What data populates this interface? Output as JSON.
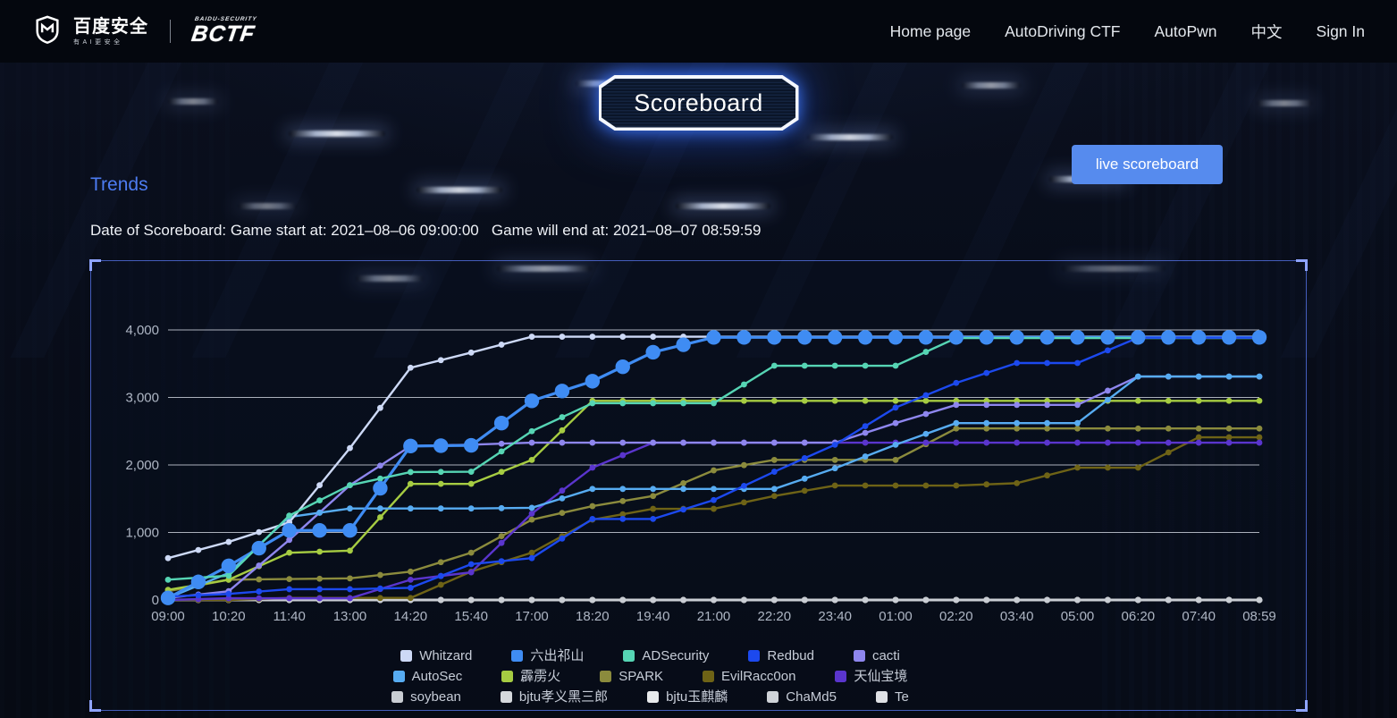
{
  "navbar": {
    "brand": {
      "name_cn": "百度安全",
      "slogan": "有AI更安全",
      "bctf_small": "BAIDU-SECURITY",
      "bctf": "BCTF"
    },
    "items": [
      {
        "label": "Home page"
      },
      {
        "label": "AutoDriving CTF"
      },
      {
        "label": "AutoPwn"
      },
      {
        "label": "中文"
      },
      {
        "label": "Sign In"
      }
    ]
  },
  "page": {
    "title": "Scoreboard",
    "live_button": "live scoreboard",
    "section_title": "Trends",
    "date_line": "Date of Scoreboard: Game start at: 2021–08–06 09:00:00   Game will end at: 2021–08–07 08:59:59"
  },
  "colors": {
    "accent_blue": "#4d7cf2",
    "button_blue": "#568bee",
    "panel_border": "#5470e2",
    "grid_line": "#d4d9e3",
    "tick_text": "#aeb6c4"
  },
  "chart_data": {
    "type": "line",
    "title": "Trends",
    "xlabel": "",
    "ylabel": "",
    "ylim": [
      0,
      4000
    ],
    "grid": true,
    "legend_position": "bottom",
    "x_ticks": [
      "09:00",
      "10:20",
      "11:40",
      "13:00",
      "14:20",
      "15:40",
      "17:00",
      "18:20",
      "19:40",
      "21:00",
      "22:20",
      "23:40",
      "01:00",
      "02:20",
      "03:40",
      "05:00",
      "06:20",
      "07:40",
      "08:59"
    ],
    "y_ticks": [
      {
        "value": 0,
        "label": "0"
      },
      {
        "value": 1000,
        "label": "1,000"
      },
      {
        "value": 2000,
        "label": "2,000"
      },
      {
        "value": 3000,
        "label": "3,000"
      },
      {
        "value": 4000,
        "label": "4,000"
      }
    ],
    "series": [
      {
        "name": "Whitzard",
        "color": "#cdd9f6",
        "big_markers": false,
        "values": [
          620,
          860,
          1150,
          2250,
          3440,
          3665,
          3900,
          3900,
          3900,
          3900,
          3900,
          3900,
          3900,
          3900,
          3900,
          3900,
          3900,
          3900,
          3900
        ]
      },
      {
        "name": "六出祁山",
        "color": "#3f8cf3",
        "big_markers": true,
        "values": [
          30,
          505,
          1030,
          1030,
          2280,
          2290,
          2950,
          3240,
          3670,
          3890,
          3890,
          3890,
          3890,
          3890,
          3890,
          3890,
          3890,
          3890,
          3890
        ]
      },
      {
        "name": "ADSecurity",
        "color": "#56d5b4",
        "big_markers": false,
        "values": [
          300,
          360,
          1250,
          1700,
          1895,
          1900,
          2500,
          2915,
          2915,
          2915,
          3470,
          3470,
          3470,
          3880,
          3880,
          3880,
          3880,
          3880,
          3880
        ]
      },
      {
        "name": "Redbud",
        "color": "#1c49ee",
        "big_markers": false,
        "values": [
          50,
          90,
          160,
          160,
          180,
          530,
          620,
          1200,
          1200,
          1480,
          1900,
          2300,
          2850,
          3215,
          3510,
          3510,
          3885,
          3885,
          3885
        ]
      },
      {
        "name": "cacti",
        "color": "#8e86ee",
        "big_markers": false,
        "values": [
          30,
          130,
          890,
          1700,
          2280,
          2300,
          2330,
          2330,
          2330,
          2330,
          2330,
          2330,
          2620,
          2890,
          2890,
          2890,
          3310,
          3310,
          3310
        ]
      },
      {
        "name": "AutoSec",
        "color": "#57acf2",
        "big_markers": false,
        "values": [
          30,
          400,
          1230,
          1355,
          1355,
          1355,
          1365,
          1645,
          1645,
          1645,
          1645,
          1950,
          2300,
          2620,
          2620,
          2620,
          3310,
          3310,
          3310
        ]
      },
      {
        "name": "霹雳火",
        "color": "#a6cc42",
        "big_markers": false,
        "values": [
          150,
          300,
          700,
          730,
          1720,
          1720,
          2075,
          2950,
          2950,
          2950,
          2950,
          2950,
          2950,
          2950,
          2950,
          2950,
          2950,
          2950,
          2950
        ]
      },
      {
        "name": "SPARK",
        "color": "#8b8b3d",
        "big_markers": false,
        "values": [
          130,
          300,
          310,
          320,
          420,
          700,
          1190,
          1390,
          1540,
          1920,
          2075,
          2075,
          2075,
          2540,
          2540,
          2540,
          2540,
          2540,
          2540
        ]
      },
      {
        "name": "EvilRacc0on",
        "color": "#6e6316",
        "big_markers": false,
        "values": [
          0,
          0,
          30,
          30,
          30,
          420,
          700,
          1190,
          1350,
          1350,
          1540,
          1695,
          1695,
          1695,
          1730,
          1960,
          1960,
          2410,
          2410
        ]
      },
      {
        "name": "天仙宝境",
        "color": "#5a35cd",
        "big_markers": false,
        "values": [
          0,
          25,
          25,
          25,
          300,
          410,
          1280,
          1960,
          2330,
          2330,
          2330,
          2330,
          2330,
          2330,
          2330,
          2330,
          2330,
          2330,
          2330
        ]
      },
      {
        "name": "soybean",
        "color": "#c9cdd3",
        "big_markers": false,
        "values": [
          0,
          0,
          0,
          0,
          0,
          0,
          0,
          0,
          0,
          0,
          0,
          0,
          0,
          0,
          0,
          0,
          0,
          0,
          0
        ]
      },
      {
        "name": "bjtu孝义黑三郎",
        "color": "#d5d8dc",
        "big_markers": false,
        "values": [
          0,
          0,
          0,
          0,
          0,
          0,
          0,
          0,
          0,
          0,
          0,
          0,
          0,
          0,
          0,
          0,
          0,
          0,
          0
        ]
      },
      {
        "name": "bjtu玉麒麟",
        "color": "#e8eaec",
        "big_markers": false,
        "values": [
          0,
          0,
          0,
          0,
          0,
          0,
          0,
          0,
          0,
          0,
          0,
          0,
          0,
          0,
          0,
          0,
          0,
          0,
          0
        ]
      },
      {
        "name": "ChaMd5",
        "color": "#cfd3d8",
        "big_markers": false,
        "values": [
          0,
          0,
          0,
          0,
          0,
          0,
          0,
          0,
          0,
          0,
          0,
          0,
          0,
          0,
          0,
          0,
          0,
          0,
          0
        ]
      },
      {
        "name": "Te",
        "color": "#dfe1e5",
        "big_markers": false,
        "values": [
          0,
          0,
          0,
          0,
          0,
          0,
          0,
          0,
          0,
          0,
          0,
          0,
          0,
          0,
          0,
          0,
          0,
          0,
          0
        ]
      }
    ],
    "draw_order": [
      14,
      13,
      12,
      11,
      10,
      8,
      7,
      6,
      9,
      4,
      5,
      0,
      1,
      2,
      3
    ],
    "legend_rows": [
      [
        0,
        1,
        2,
        3,
        4
      ],
      [
        5,
        6,
        7,
        8,
        9
      ],
      [
        10,
        11,
        12,
        13,
        14
      ]
    ]
  }
}
